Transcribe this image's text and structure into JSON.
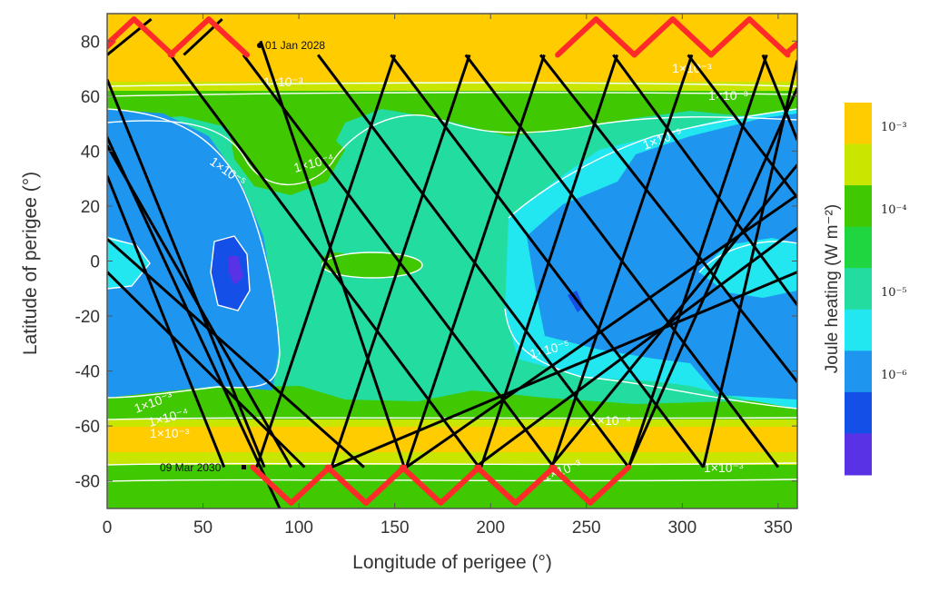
{
  "chart_data": {
    "type": "heatmap",
    "title": "",
    "xlabel": "Longitude of perigee (°)",
    "ylabel": "Latitude of perigee (°)",
    "xlim": [
      0,
      360
    ],
    "ylim": [
      -90,
      90
    ],
    "xticks": [
      "0",
      "50",
      "100",
      "150",
      "200",
      "250",
      "300",
      "350"
    ],
    "yticks": [
      "80",
      "60",
      "40",
      "20",
      "0",
      "-20",
      "-40",
      "-60",
      "-80"
    ],
    "grid": false,
    "colorbar": {
      "title": "Joule heating (W m⁻²)",
      "scale": "log",
      "labels": [
        "10⁻³",
        "10⁻⁴",
        "10⁻⁵",
        "10⁻⁶"
      ],
      "colors": [
        "#ffcc00",
        "#c8e600",
        "#40c800",
        "#20d640",
        "#22dca0",
        "#22e6f0",
        "#1e96f0",
        "#1450e8",
        "#5a32e6"
      ]
    },
    "contour_labels": [
      "1×10⁻³",
      "1×10⁻³",
      "1×10⁻³",
      "1×10⁻⁴",
      "1×10⁻⁵",
      "1×10⁻⁵",
      "1×10⁻⁵",
      "1×10⁻³",
      "1×10⁻⁴",
      "1×10⁻³",
      "1×10⁻³",
      "1×10⁻⁴",
      "1×10⁻³"
    ],
    "track": {
      "start_label": "01 Jan 2028",
      "start_point": [
        80,
        80
      ],
      "end_label": "09 Mar 2030",
      "end_point": [
        72,
        -75
      ],
      "color": "#000000",
      "highlight_color": "#ff2a2a",
      "segments": [
        [
          [
            -14,
            66
          ],
          [
            90,
            -90
          ]
        ],
        [
          [
            0,
            66
          ],
          [
            82,
            -75
          ]
        ],
        [
          [
            0,
            42
          ],
          [
            96,
            -75
          ]
        ],
        [
          [
            0,
            31
          ],
          [
            61,
            -75
          ]
        ],
        [
          [
            0,
            8
          ],
          [
            134,
            -75
          ]
        ],
        [
          [
            0,
            -4
          ],
          [
            103,
            -75
          ]
        ],
        [
          [
            80,
            80
          ],
          [
            155,
            -75
          ]
        ],
        [
          [
            33,
            75
          ],
          [
            194,
            -75
          ]
        ],
        [
          [
            71,
            75
          ],
          [
            233,
            -75
          ]
        ],
        [
          [
            110,
            75
          ],
          [
            272,
            -75
          ]
        ],
        [
          [
            148,
            75
          ],
          [
            311,
            -75
          ]
        ],
        [
          [
            187,
            75
          ],
          [
            350,
            -75
          ]
        ],
        [
          [
            226,
            75
          ],
          [
            360,
            -44
          ]
        ],
        [
          [
            264,
            75
          ],
          [
            360,
            -16
          ]
        ],
        [
          [
            303,
            75
          ],
          [
            360,
            23
          ]
        ],
        [
          [
            342,
            75
          ],
          [
            360,
            44
          ]
        ],
        [
          [
            195,
            -75
          ],
          [
            266,
            75
          ]
        ],
        [
          [
            156,
            -75
          ],
          [
            228,
            75
          ]
        ],
        [
          [
            117,
            -75
          ],
          [
            189,
            75
          ]
        ],
        [
          [
            78,
            -75
          ],
          [
            150,
            75
          ]
        ],
        [
          [
            232,
            -75
          ],
          [
            305,
            75
          ]
        ],
        [
          [
            272,
            -75
          ],
          [
            344,
            75
          ]
        ],
        [
          [
            156,
            -75
          ],
          [
            360,
            24
          ]
        ],
        [
          [
            117,
            -75
          ],
          [
            360,
            -4
          ]
        ],
        [
          [
            231,
            -75
          ],
          [
            360,
            35
          ]
        ],
        [
          [
            192,
            -75
          ],
          [
            360,
            12
          ]
        ],
        [
          [
            272,
            -75
          ],
          [
            360,
            63
          ]
        ],
        [
          [
            311,
            -75
          ],
          [
            360,
            73
          ]
        ],
        [
          [
            0,
            75
          ],
          [
            23,
            88
          ]
        ],
        [
          [
            40,
            75
          ],
          [
            60,
            88
          ]
        ]
      ],
      "peaks_top": [
        14,
        53,
        255,
        295,
        335
      ],
      "peaks_bottom": [
        96,
        135,
        174,
        213,
        252
      ]
    }
  }
}
